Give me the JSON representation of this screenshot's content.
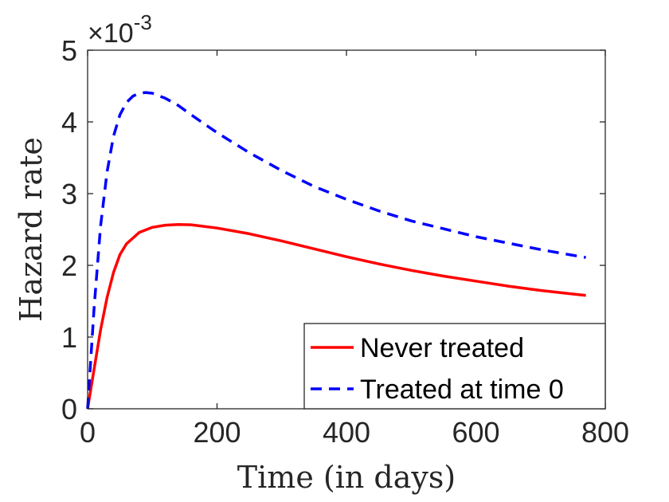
{
  "chart_data": {
    "type": "line",
    "xlabel": "Time (in days)",
    "ylabel": "Hazard rate",
    "xlim": [
      0,
      800
    ],
    "ylim": [
      0,
      5
    ],
    "y_scale_exponent_label": {
      "base": "×10",
      "exponent": "-3"
    },
    "x_ticks": [
      0,
      200,
      400,
      600,
      800
    ],
    "x_tick_labels": [
      "0",
      "200",
      "400",
      "600",
      "800"
    ],
    "y_ticks": [
      0,
      1,
      2,
      3,
      4,
      5
    ],
    "y_tick_labels": [
      "0",
      "1",
      "2",
      "3",
      "4",
      "5"
    ],
    "legend_position": "bottom-right",
    "series": [
      {
        "name": "Never treated",
        "color": "#ff0000",
        "style": "solid",
        "x": [
          0,
          10,
          20,
          30,
          40,
          50,
          60,
          80,
          100,
          120,
          140,
          160,
          200,
          250,
          300,
          350,
          400,
          450,
          500,
          550,
          600,
          650,
          700,
          750,
          770
        ],
        "y": [
          0,
          0.55,
          1.1,
          1.55,
          1.9,
          2.15,
          2.3,
          2.46,
          2.53,
          2.56,
          2.57,
          2.565,
          2.52,
          2.44,
          2.34,
          2.23,
          2.12,
          2.02,
          1.93,
          1.85,
          1.78,
          1.71,
          1.65,
          1.6,
          1.58
        ]
      },
      {
        "name": "Treated at time 0",
        "color": "#0000ff",
        "style": "dashed",
        "x": [
          0,
          10,
          20,
          30,
          40,
          50,
          60,
          70,
          80,
          90,
          100,
          120,
          140,
          160,
          200,
          250,
          300,
          350,
          400,
          450,
          500,
          550,
          600,
          650,
          700,
          750,
          770
        ],
        "y": [
          0,
          1.4,
          2.55,
          3.3,
          3.8,
          4.1,
          4.27,
          4.36,
          4.4,
          4.41,
          4.4,
          4.33,
          4.23,
          4.1,
          3.85,
          3.57,
          3.32,
          3.1,
          2.92,
          2.76,
          2.62,
          2.51,
          2.4,
          2.31,
          2.22,
          2.14,
          2.11
        ]
      }
    ]
  }
}
